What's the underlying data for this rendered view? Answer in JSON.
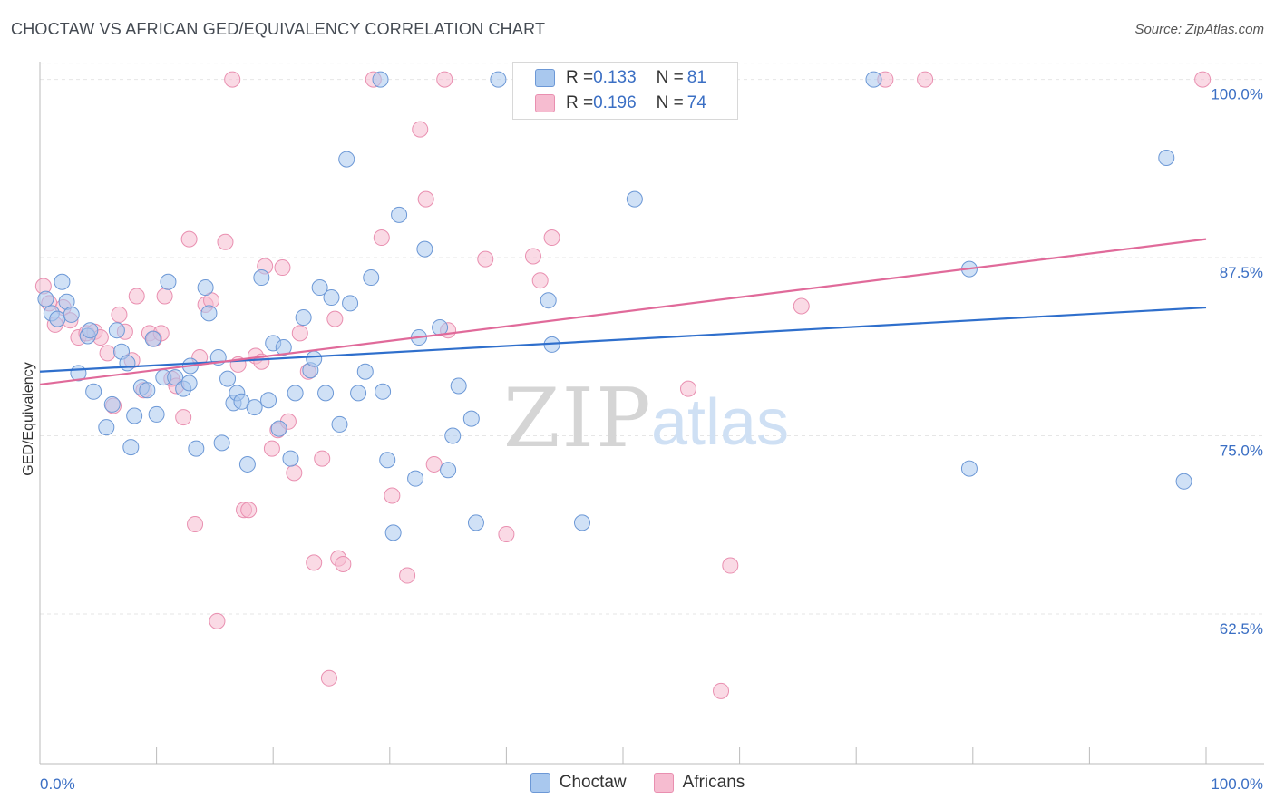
{
  "title": "CHOCTAW VS AFRICAN GED/EQUIVALENCY CORRELATION CHART",
  "source": "Source: ZipAtlas.com",
  "watermark": {
    "zip": "ZIP",
    "atlas": "atlas"
  },
  "legend_top": {
    "rows": [
      {
        "r_label": "R = ",
        "r_value": "0.133",
        "n_label": "N = ",
        "n_value": "81"
      },
      {
        "r_label": "R = ",
        "r_value": "0.196",
        "n_label": "N = ",
        "n_value": "74"
      }
    ]
  },
  "legend_bottom": [
    "Choctaw",
    "Africans"
  ],
  "chart_data": {
    "type": "scatter",
    "xlabel": "",
    "ylabel": "GED/Equivalency",
    "xlim": [
      0,
      100
    ],
    "ylim": [
      52,
      101.5
    ],
    "x_tick_labels": [
      "0.0%",
      "100.0%"
    ],
    "y_ticks": [
      {
        "value": 62.5,
        "label": "62.5%"
      },
      {
        "value": 75.0,
        "label": "75.0%"
      },
      {
        "value": 87.5,
        "label": "87.5%"
      },
      {
        "value": 100.0,
        "label": "100.0%"
      }
    ],
    "grid": true,
    "colors": {
      "choctaw_fill": "#a9c8ee",
      "choctaw_stroke": "#6c98d6",
      "choctaw_line": "#2f6fcc",
      "africans_fill": "#f6bcd0",
      "africans_stroke": "#e98fb0",
      "africans_line": "#e06a9a",
      "tick_label": "#3b6fc4"
    },
    "series": [
      {
        "name": "Choctaw",
        "trend": {
          "x": [
            0,
            100
          ],
          "y": [
            79.5,
            84.0
          ]
        },
        "points": [
          [
            0.5,
            84.6
          ],
          [
            1.0,
            83.6
          ],
          [
            1.5,
            83.2
          ],
          [
            1.9,
            85.8
          ],
          [
            2.3,
            84.4
          ],
          [
            2.7,
            83.5
          ],
          [
            3.3,
            79.4
          ],
          [
            4.1,
            82.0
          ],
          [
            4.3,
            82.4
          ],
          [
            4.6,
            78.1
          ],
          [
            5.7,
            75.6
          ],
          [
            6.2,
            77.2
          ],
          [
            6.6,
            82.4
          ],
          [
            7.0,
            80.9
          ],
          [
            7.5,
            80.1
          ],
          [
            7.8,
            74.2
          ],
          [
            8.1,
            76.4
          ],
          [
            8.7,
            78.4
          ],
          [
            9.2,
            78.2
          ],
          [
            9.7,
            81.8
          ],
          [
            10.0,
            76.5
          ],
          [
            10.6,
            79.1
          ],
          [
            11.0,
            85.8
          ],
          [
            11.6,
            79.1
          ],
          [
            12.3,
            78.3
          ],
          [
            12.8,
            78.7
          ],
          [
            12.9,
            79.9
          ],
          [
            13.4,
            74.1
          ],
          [
            14.2,
            85.4
          ],
          [
            14.5,
            83.6
          ],
          [
            15.3,
            80.5
          ],
          [
            15.6,
            74.5
          ],
          [
            16.1,
            79.0
          ],
          [
            16.6,
            77.3
          ],
          [
            16.9,
            78.0
          ],
          [
            17.3,
            77.4
          ],
          [
            17.8,
            73.0
          ],
          [
            18.4,
            77.0
          ],
          [
            19.0,
            86.1
          ],
          [
            19.6,
            77.5
          ],
          [
            20.0,
            81.5
          ],
          [
            20.5,
            75.5
          ],
          [
            20.9,
            81.2
          ],
          [
            21.5,
            73.4
          ],
          [
            21.9,
            78.0
          ],
          [
            22.6,
            83.3
          ],
          [
            23.2,
            79.6
          ],
          [
            23.5,
            80.4
          ],
          [
            24.0,
            85.4
          ],
          [
            24.5,
            78.0
          ],
          [
            25.0,
            84.7
          ],
          [
            25.7,
            75.8
          ],
          [
            26.3,
            94.4
          ],
          [
            26.6,
            84.3
          ],
          [
            27.3,
            78.0
          ],
          [
            27.9,
            79.5
          ],
          [
            28.4,
            86.1
          ],
          [
            29.2,
            100.0
          ],
          [
            29.4,
            78.1
          ],
          [
            29.8,
            73.3
          ],
          [
            30.3,
            68.2
          ],
          [
            30.8,
            90.5
          ],
          [
            32.2,
            72.0
          ],
          [
            32.5,
            81.9
          ],
          [
            33.0,
            88.1
          ],
          [
            34.3,
            82.6
          ],
          [
            35.0,
            72.6
          ],
          [
            35.4,
            75.0
          ],
          [
            35.9,
            78.5
          ],
          [
            37.0,
            76.2
          ],
          [
            37.4,
            68.9
          ],
          [
            39.3,
            100.0
          ],
          [
            43.6,
            84.5
          ],
          [
            43.9,
            81.4
          ],
          [
            46.5,
            68.9
          ],
          [
            51.0,
            91.6
          ],
          [
            71.5,
            100.0
          ],
          [
            79.7,
            86.7
          ],
          [
            79.7,
            72.7
          ],
          [
            96.6,
            94.5
          ],
          [
            98.1,
            71.8
          ]
        ]
      },
      {
        "name": "Africans",
        "trend": {
          "x": [
            0,
            100
          ],
          "y": [
            78.6,
            88.8
          ]
        },
        "points": [
          [
            0.3,
            85.5
          ],
          [
            0.8,
            84.3
          ],
          [
            1.3,
            82.8
          ],
          [
            2.0,
            84.0
          ],
          [
            2.6,
            83.1
          ],
          [
            3.3,
            81.9
          ],
          [
            4.0,
            82.2
          ],
          [
            4.7,
            82.3
          ],
          [
            5.2,
            81.9
          ],
          [
            5.8,
            80.8
          ],
          [
            6.3,
            77.1
          ],
          [
            6.8,
            83.5
          ],
          [
            7.3,
            82.3
          ],
          [
            7.9,
            80.3
          ],
          [
            8.3,
            84.8
          ],
          [
            8.9,
            78.2
          ],
          [
            9.4,
            82.2
          ],
          [
            9.8,
            81.8
          ],
          [
            10.4,
            82.2
          ],
          [
            10.7,
            84.8
          ],
          [
            11.3,
            79.0
          ],
          [
            11.7,
            78.5
          ],
          [
            12.3,
            76.3
          ],
          [
            12.8,
            88.8
          ],
          [
            13.3,
            68.8
          ],
          [
            13.7,
            80.5
          ],
          [
            14.2,
            84.2
          ],
          [
            14.7,
            84.5
          ],
          [
            15.2,
            62.0
          ],
          [
            15.9,
            88.6
          ],
          [
            16.5,
            100.0
          ],
          [
            17.0,
            80.0
          ],
          [
            17.5,
            69.8
          ],
          [
            17.9,
            69.8
          ],
          [
            18.5,
            80.6
          ],
          [
            19.0,
            80.2
          ],
          [
            19.3,
            86.9
          ],
          [
            19.9,
            74.1
          ],
          [
            20.4,
            75.4
          ],
          [
            20.8,
            86.8
          ],
          [
            21.3,
            76.0
          ],
          [
            21.8,
            72.4
          ],
          [
            22.3,
            82.2
          ],
          [
            23.0,
            79.5
          ],
          [
            23.5,
            66.1
          ],
          [
            24.2,
            73.4
          ],
          [
            24.8,
            58.0
          ],
          [
            25.3,
            83.2
          ],
          [
            25.6,
            66.4
          ],
          [
            26.0,
            66.0
          ],
          [
            28.6,
            100.0
          ],
          [
            29.3,
            88.9
          ],
          [
            30.2,
            70.8
          ],
          [
            31.5,
            65.2
          ],
          [
            32.6,
            96.5
          ],
          [
            33.1,
            91.6
          ],
          [
            33.8,
            73.0
          ],
          [
            34.7,
            100.0
          ],
          [
            35.0,
            82.4
          ],
          [
            38.2,
            87.4
          ],
          [
            40.0,
            68.1
          ],
          [
            42.3,
            87.6
          ],
          [
            42.9,
            85.9
          ],
          [
            43.9,
            88.9
          ],
          [
            52.0,
            100.0
          ],
          [
            55.6,
            78.3
          ],
          [
            58.4,
            57.1
          ],
          [
            59.2,
            65.9
          ],
          [
            65.3,
            84.1
          ],
          [
            72.5,
            100.0
          ],
          [
            75.9,
            100.0
          ],
          [
            99.7,
            100.0
          ]
        ]
      }
    ]
  }
}
